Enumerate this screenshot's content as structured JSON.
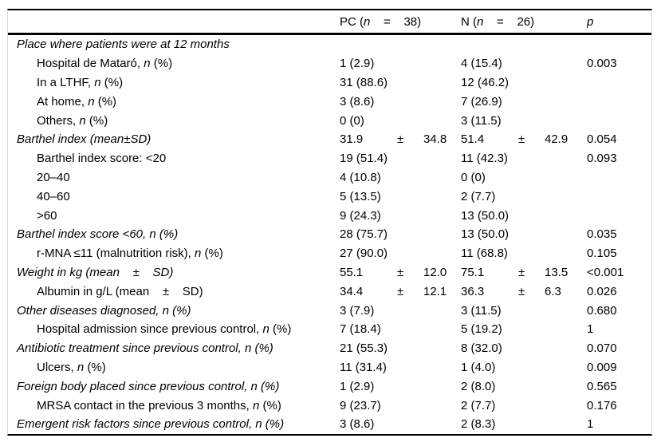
{
  "table": {
    "header": {
      "col_label": "",
      "col_pc": "PC (*n*    =    38)",
      "col_n": "N (*n*    =    26)",
      "col_p": "*p*"
    },
    "rows": [
      {
        "label": "Place where patients were at 12 months",
        "italic": true,
        "indent": false,
        "pc": "",
        "n": "",
        "p": ""
      },
      {
        "label": "Hospital de Mataró, *n* (%)",
        "italic": false,
        "indent": true,
        "pc": "1 (2.9)",
        "n": "4 (15.4)",
        "p": "0.003"
      },
      {
        "label": "In a LTHF, *n* (%)",
        "italic": false,
        "indent": true,
        "pc": "31 (88.6)",
        "n": "12 (46.2)",
        "p": ""
      },
      {
        "label": "At home, *n* (%)",
        "italic": false,
        "indent": true,
        "pc": "3 (8.6)",
        "n": "7 (26.9)",
        "p": ""
      },
      {
        "label": "Others, *n* (%)",
        "italic": false,
        "indent": true,
        "pc": "0 (0)",
        "n": "3 (11.5)",
        "p": ""
      },
      {
        "label": "Barthel index (mean±SD)",
        "italic": true,
        "indent": false,
        "pc": "31.9 ± 34.8",
        "n": "51.4 ± 42.9",
        "p": "0.054"
      },
      {
        "label": "Barthel index score: <20",
        "italic": false,
        "indent": true,
        "pc": "19 (51.4)",
        "n": "11 (42.3)",
        "p": "0.093"
      },
      {
        "label": "20–40",
        "italic": false,
        "indent": true,
        "pc": "4 (10.8)",
        "n": "0 (0)",
        "p": ""
      },
      {
        "label": "40–60",
        "italic": false,
        "indent": true,
        "pc": "5 (13.5)",
        "n": "2 (7.7)",
        "p": ""
      },
      {
        "label": ">60",
        "italic": false,
        "indent": true,
        "pc": "9 (24.3)",
        "n": "13 (50.0)",
        "p": ""
      },
      {
        "label": "Barthel index score <60, n (%)",
        "italic": true,
        "indent": false,
        "pc": "28 (75.7)",
        "n": "13 (50.0)",
        "p": "0.035"
      },
      {
        "label": "r-MNA ≤11 (malnutrition risk), *n* (%)",
        "italic": false,
        "indent": true,
        "pc": "27 (90.0)",
        "n": "11 (68.8)",
        "p": "0.105"
      },
      {
        "label": "Weight in kg (mean    ±    SD)",
        "italic": true,
        "indent": false,
        "pc": "55.1 ± 12.0",
        "n": "75.1 ± 13.5",
        "p": "<0.001"
      },
      {
        "label": "Albumin in g/L (mean    ±    SD)",
        "italic": false,
        "indent": true,
        "pc": "34.4 ± 12.1",
        "n": "36.3 ± 6.3",
        "p": "0.026"
      },
      {
        "label": "Other diseases diagnosed, n (%)",
        "italic": true,
        "indent": false,
        "pc": "3 (7.9)",
        "n": "3 (11.5)",
        "p": "0.680"
      },
      {
        "label": "Hospital admission since previous control, *n* (%)",
        "italic": false,
        "indent": true,
        "pc": "7 (18.4)",
        "n": "5 (19.2)",
        "p": "1"
      },
      {
        "label": "Antibiotic treatment since previous control, n (%)",
        "italic": true,
        "indent": false,
        "pc": "21 (55.3)",
        "n": "8 (32.0)",
        "p": "0.070"
      },
      {
        "label": "Ulcers, *n* (%)",
        "italic": false,
        "indent": true,
        "pc": "11 (31.4)",
        "n": "1 (4.0)",
        "p": "0.009"
      },
      {
        "label": "Foreign body placed since previous control, n (%)",
        "italic": true,
        "indent": false,
        "pc": "1 (2.9)",
        "n": "2 (8.0)",
        "p": "0.565"
      },
      {
        "label": "MRSA contact in the previous 3 months, *n* (%)",
        "italic": false,
        "indent": true,
        "pc": "9 (23.7)",
        "n": "2 (7.7)",
        "p": "0.176"
      },
      {
        "label": "Emergent risk factors since previous control, n (%)",
        "italic": true,
        "indent": false,
        "pc": "3 (8.6)",
        "n": "2 (8.3)",
        "p": "1"
      }
    ],
    "colors": {
      "text": "#000000",
      "rule": "#000000",
      "edge_artifact": "#d7d7d7",
      "background": "#ffffff"
    }
  }
}
